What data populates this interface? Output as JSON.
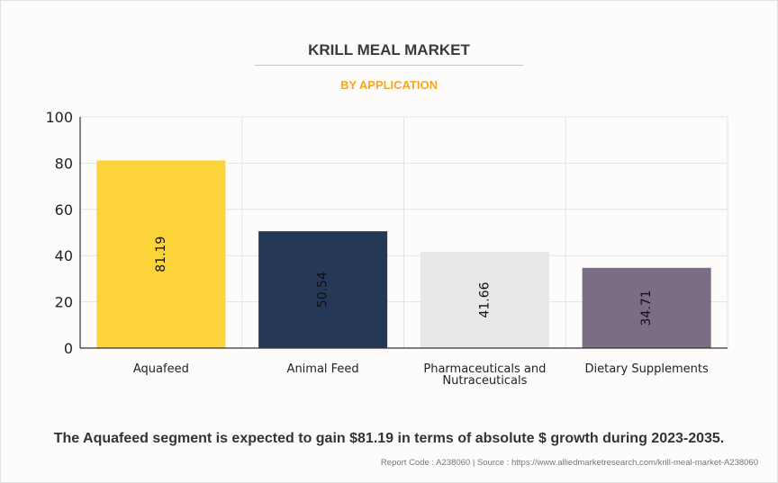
{
  "chart_data": {
    "type": "bar",
    "title": "KRILL MEAL MARKET",
    "subtitle": "BY APPLICATION",
    "categories": [
      "Aquafeed",
      "Animal Feed",
      "Pharmaceuticals and Nutraceuticals",
      "Dietary Supplements"
    ],
    "category_lines": [
      [
        "Aquafeed"
      ],
      [
        "Animal Feed"
      ],
      [
        "Pharmaceuticals and",
        "Nutraceuticals"
      ],
      [
        "Dietary Supplements"
      ]
    ],
    "values": [
      81.19,
      50.54,
      41.66,
      34.71
    ],
    "value_labels": [
      "81.19",
      "50.54",
      "41.66",
      "34.71"
    ],
    "colors": [
      "#fdd33a",
      "#253858",
      "#e8e8e8",
      "#7b6d85"
    ],
    "ylim": [
      0,
      100
    ],
    "yticks": [
      0,
      20,
      40,
      60,
      80,
      100
    ],
    "xlabel": "",
    "ylabel": "",
    "grid": true
  },
  "caption": "The Aquafeed segment is expected to gain $81.19 in terms of absolute $ growth during 2023-2035.",
  "source": "Report Code : A238060  |  Source : https://www.alliedmarketresearch.com/krill-meal-market-A238060"
}
